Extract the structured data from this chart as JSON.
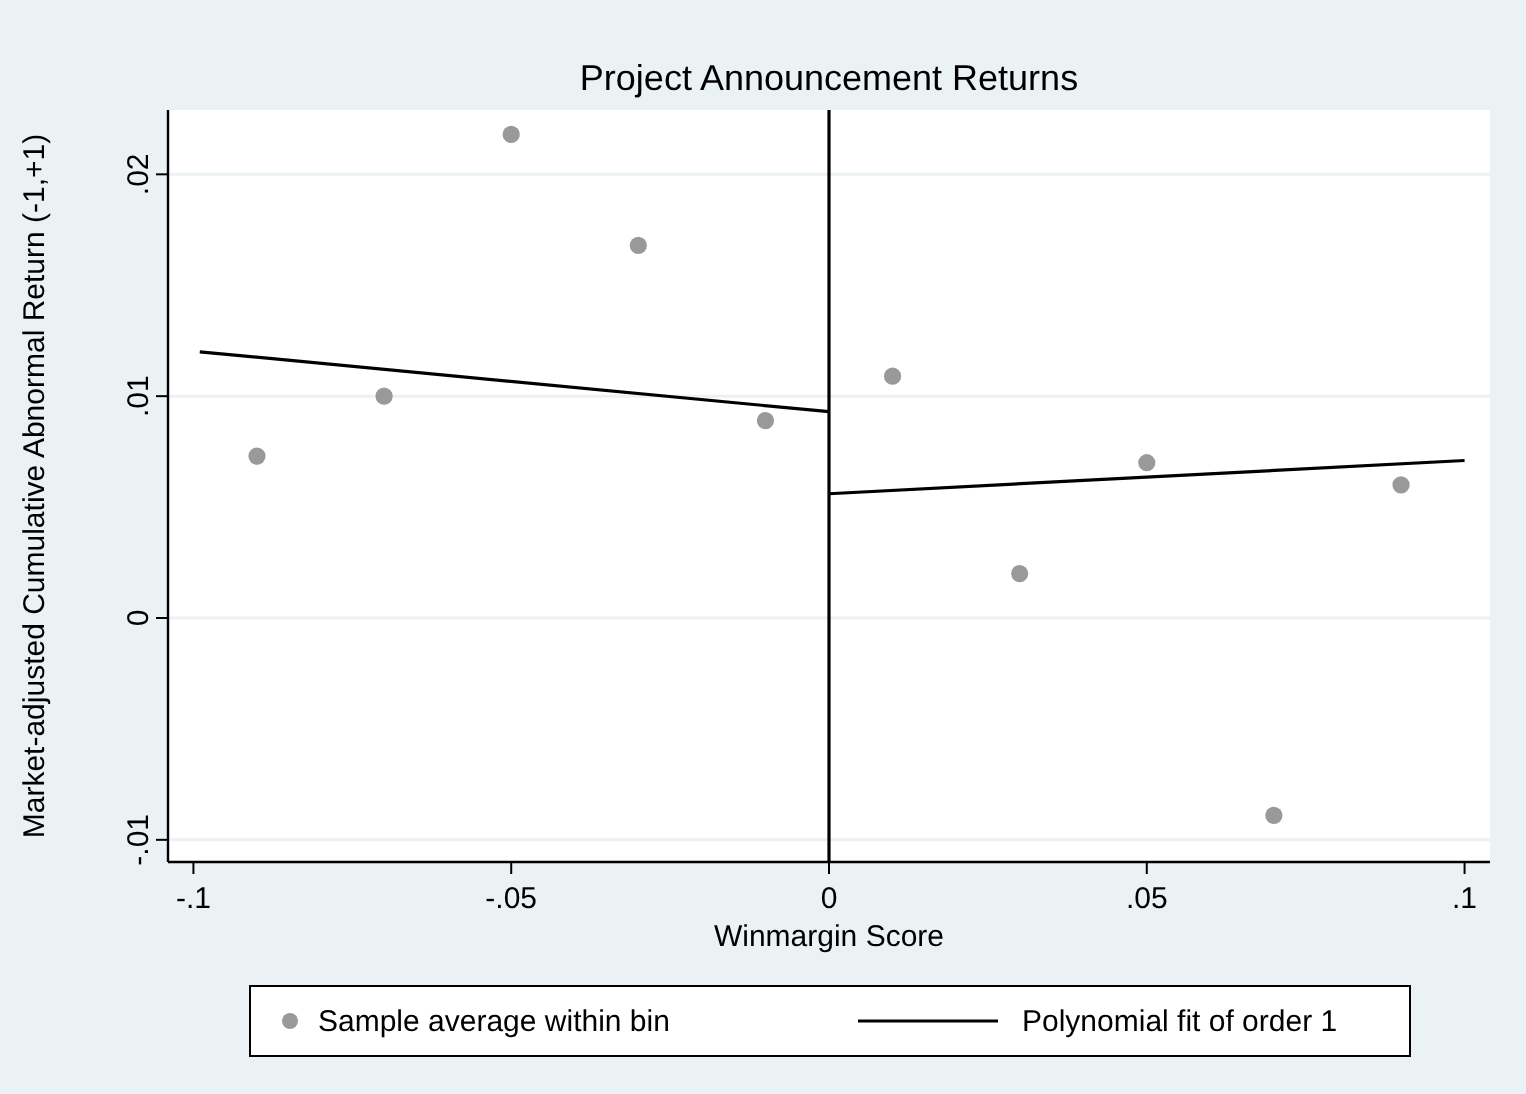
{
  "chart_data": {
    "type": "scatter",
    "title": "Project Announcement Returns",
    "xlabel": "Winmargin Score",
    "ylabel": "Market-adjusted Cumulative Abnormal Return (-1,+1)",
    "xlim": [
      -0.104,
      0.104
    ],
    "ylim": [
      -0.011,
      0.0229
    ],
    "xticks": [
      {
        "value": -0.1,
        "label": "-.1"
      },
      {
        "value": -0.05,
        "label": "-.05"
      },
      0,
      {
        "value": 0.05,
        "label": ".05"
      },
      {
        "value": 0.1,
        "label": ".1"
      }
    ],
    "yticks": [
      {
        "value": -0.01,
        "label": "-.01"
      },
      0,
      {
        "value": 0.01,
        "label": ".01"
      },
      {
        "value": 0.02,
        "label": ".02"
      }
    ],
    "grid": "y",
    "legend": "bottom",
    "ref_lines": [
      {
        "axis": "x",
        "value": 0,
        "color": "#000000"
      }
    ],
    "series": [
      {
        "name": "Sample average within bin",
        "color": "#999999",
        "marker": "circle",
        "x": [
          -0.09,
          -0.07,
          -0.05,
          -0.03,
          -0.01,
          0.01,
          0.03,
          0.05,
          0.07,
          0.09
        ],
        "values": [
          0.0073,
          0.01,
          0.0218,
          0.0168,
          0.0089,
          0.0109,
          0.002,
          0.007,
          -0.0089,
          0.006
        ]
      },
      {
        "type": "line",
        "name": "Polynomial fit of order 1",
        "color": "#000000",
        "x": [
          -0.099,
          0
        ],
        "values": [
          0.012,
          0.0093
        ]
      },
      {
        "type": "line",
        "color": "#000000",
        "x": [
          0,
          0.1
        ],
        "values": [
          0.0056,
          0.0071
        ]
      }
    ]
  }
}
